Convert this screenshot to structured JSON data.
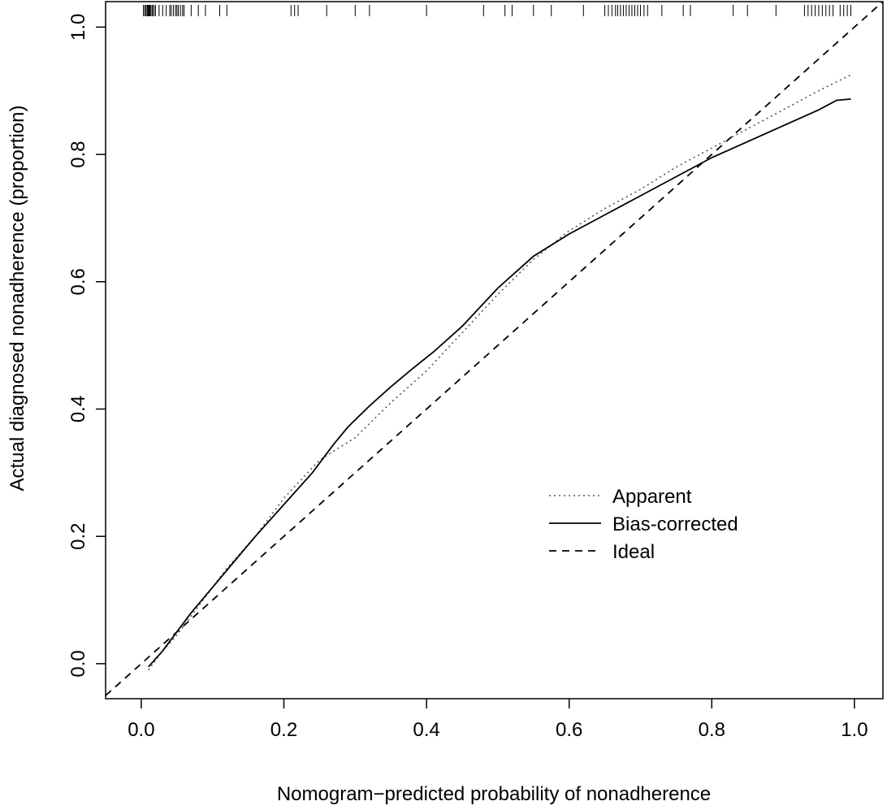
{
  "chart_data": {
    "type": "line",
    "title": "",
    "xlabel": "Nomogram−predicted probability of nonadherence",
    "ylabel": "Actual diagnosed nonadherence (proportion)",
    "xlim": [
      -0.05,
      1.04
    ],
    "ylim": [
      -0.055,
      1.04
    ],
    "x_ticks": [
      0.0,
      0.2,
      0.4,
      0.6,
      0.8,
      1.0
    ],
    "x_tick_labels": [
      "0.0",
      "0.2",
      "0.4",
      "0.6",
      "0.8",
      "1.0"
    ],
    "y_ticks": [
      0.0,
      0.2,
      0.4,
      0.6,
      0.8,
      1.0
    ],
    "y_tick_labels": [
      "0.0",
      "0.2",
      "0.4",
      "0.6",
      "0.8",
      "1.0"
    ],
    "grid": false,
    "legend_position": "right-center",
    "series": [
      {
        "name": "Apparent",
        "style": "dotted",
        "color": "#555555",
        "x": [
          0.01,
          0.03,
          0.05,
          0.08,
          0.12,
          0.16,
          0.2,
          0.25,
          0.3,
          0.35,
          0.4,
          0.45,
          0.5,
          0.55,
          0.6,
          0.65,
          0.7,
          0.75,
          0.8,
          0.85,
          0.9,
          0.95,
          0.995
        ],
        "y": [
          -0.01,
          0.02,
          0.045,
          0.09,
          0.15,
          0.2,
          0.26,
          0.32,
          0.355,
          0.41,
          0.46,
          0.52,
          0.58,
          0.635,
          0.68,
          0.715,
          0.745,
          0.78,
          0.81,
          0.84,
          0.87,
          0.9,
          0.925
        ]
      },
      {
        "name": "Bias-corrected",
        "style": "solid",
        "color": "#000000",
        "x": [
          0.01,
          0.03,
          0.05,
          0.07,
          0.1,
          0.13,
          0.16,
          0.2,
          0.24,
          0.27,
          0.29,
          0.32,
          0.35,
          0.38,
          0.41,
          0.45,
          0.5,
          0.55,
          0.6,
          0.65,
          0.7,
          0.75,
          0.8,
          0.85,
          0.9,
          0.95,
          0.975,
          0.995
        ],
        "y": [
          -0.005,
          0.02,
          0.05,
          0.08,
          0.12,
          0.16,
          0.2,
          0.25,
          0.3,
          0.345,
          0.372,
          0.405,
          0.435,
          0.463,
          0.49,
          0.53,
          0.59,
          0.64,
          0.675,
          0.705,
          0.735,
          0.765,
          0.795,
          0.82,
          0.845,
          0.87,
          0.885,
          0.887
        ]
      },
      {
        "name": "Ideal",
        "style": "dashed",
        "color": "#000000",
        "x": [
          -0.05,
          1.04
        ],
        "y": [
          -0.05,
          1.04
        ]
      }
    ],
    "rug_x": [
      0.003,
      0.005,
      0.006,
      0.008,
      0.009,
      0.01,
      0.011,
      0.012,
      0.013,
      0.015,
      0.016,
      0.018,
      0.02,
      0.025,
      0.03,
      0.035,
      0.04,
      0.042,
      0.045,
      0.048,
      0.05,
      0.052,
      0.055,
      0.058,
      0.06,
      0.07,
      0.08,
      0.09,
      0.11,
      0.12,
      0.21,
      0.215,
      0.22,
      0.26,
      0.3,
      0.32,
      0.4,
      0.48,
      0.51,
      0.52,
      0.55,
      0.575,
      0.62,
      0.65,
      0.655,
      0.66,
      0.665,
      0.668,
      0.672,
      0.676,
      0.68,
      0.684,
      0.688,
      0.692,
      0.696,
      0.7,
      0.705,
      0.71,
      0.73,
      0.76,
      0.77,
      0.83,
      0.85,
      0.89,
      0.93,
      0.935,
      0.94,
      0.945,
      0.95,
      0.955,
      0.96,
      0.965,
      0.97,
      0.98,
      0.985,
      0.99,
      0.995
    ]
  }
}
